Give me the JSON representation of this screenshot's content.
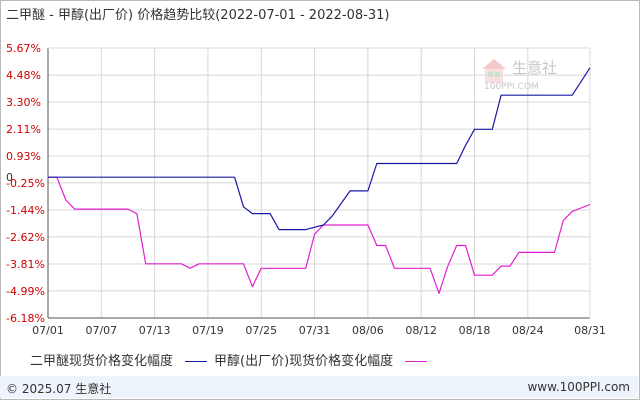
{
  "title": "二甲醚 - 甲醇(出厂价) 价格趋势比较(2022-07-01 - 2022-08-31)",
  "watermark": {
    "name": "生意社",
    "url": "100PPI.COM"
  },
  "footer": {
    "copyright": "© 2025.07 生意社",
    "url": "www.100PPI.com"
  },
  "colors": {
    "series1": "#1a1aa6",
    "series2": "#e020d0",
    "ytick": "#d00000",
    "grid": "#d8d8d8",
    "axis": "#555555"
  },
  "chart_data": {
    "type": "line",
    "title": "二甲醚 - 甲醇(出厂价) 价格趋势比较(2022-07-01 - 2022-08-31)",
    "ylim": [
      -6.18,
      5.67
    ],
    "yticks": [
      "5.67%",
      "4.48%",
      "3.30%",
      "2.11%",
      "0.93%",
      "0",
      "-0.25%",
      "-1.44%",
      "-2.62%",
      "-3.81%",
      "-4.99%",
      "-6.18%"
    ],
    "ytick_values": [
      5.67,
      4.48,
      3.3,
      2.11,
      0.93,
      0,
      -0.25,
      -1.44,
      -2.62,
      -3.81,
      -4.99,
      -6.18
    ],
    "xticks": [
      "07/01",
      "07/07",
      "07/13",
      "07/19",
      "07/25",
      "07/31",
      "08/06",
      "08/12",
      "08/18",
      "08/24",
      "08/31"
    ],
    "xtick_days": [
      0,
      6,
      12,
      18,
      24,
      30,
      36,
      42,
      48,
      54,
      61
    ],
    "grid": true,
    "legend_position": "bottom",
    "series": [
      {
        "name": "二甲醚现货价格变化幅度",
        "color": "#1a1aa6",
        "points": [
          [
            0,
            0
          ],
          [
            21,
            0
          ],
          [
            22,
            -1.3
          ],
          [
            23,
            -1.6
          ],
          [
            25,
            -1.6
          ],
          [
            26,
            -2.3
          ],
          [
            29,
            -2.3
          ],
          [
            31,
            -2.1
          ],
          [
            32,
            -1.7
          ],
          [
            34,
            -0.6
          ],
          [
            36,
            -0.6
          ],
          [
            37,
            0.6
          ],
          [
            44,
            0.6
          ],
          [
            45,
            0.6
          ],
          [
            46,
            0.6
          ],
          [
            47,
            1.4
          ],
          [
            48,
            2.1
          ],
          [
            50,
            2.1
          ],
          [
            51,
            3.6
          ],
          [
            58,
            3.6
          ],
          [
            59,
            3.6
          ],
          [
            61,
            4.8
          ]
        ]
      },
      {
        "name": "甲醇(出厂价)现货价格变化幅度",
        "color": "#e020d0",
        "points": [
          [
            0,
            0
          ],
          [
            1,
            0
          ],
          [
            2,
            -1.0
          ],
          [
            3,
            -1.4
          ],
          [
            9,
            -1.4
          ],
          [
            10,
            -1.6
          ],
          [
            11,
            -3.8
          ],
          [
            15,
            -3.8
          ],
          [
            16,
            -4.0
          ],
          [
            17,
            -3.8
          ],
          [
            22,
            -3.8
          ],
          [
            23,
            -4.8
          ],
          [
            24,
            -4.0
          ],
          [
            29,
            -4.0
          ],
          [
            30,
            -2.5
          ],
          [
            31,
            -2.1
          ],
          [
            36,
            -2.1
          ],
          [
            37,
            -3.0
          ],
          [
            38,
            -3.0
          ],
          [
            39,
            -4.0
          ],
          [
            43,
            -4.0
          ],
          [
            44,
            -5.1
          ],
          [
            45,
            -3.9
          ],
          [
            46,
            -3.0
          ],
          [
            47,
            -3.0
          ],
          [
            48,
            -4.3
          ],
          [
            50,
            -4.3
          ],
          [
            51,
            -3.9
          ],
          [
            52,
            -3.9
          ],
          [
            53,
            -3.3
          ],
          [
            57,
            -3.3
          ],
          [
            58,
            -1.9
          ],
          [
            59,
            -1.5
          ],
          [
            61,
            -1.2
          ]
        ]
      }
    ]
  }
}
